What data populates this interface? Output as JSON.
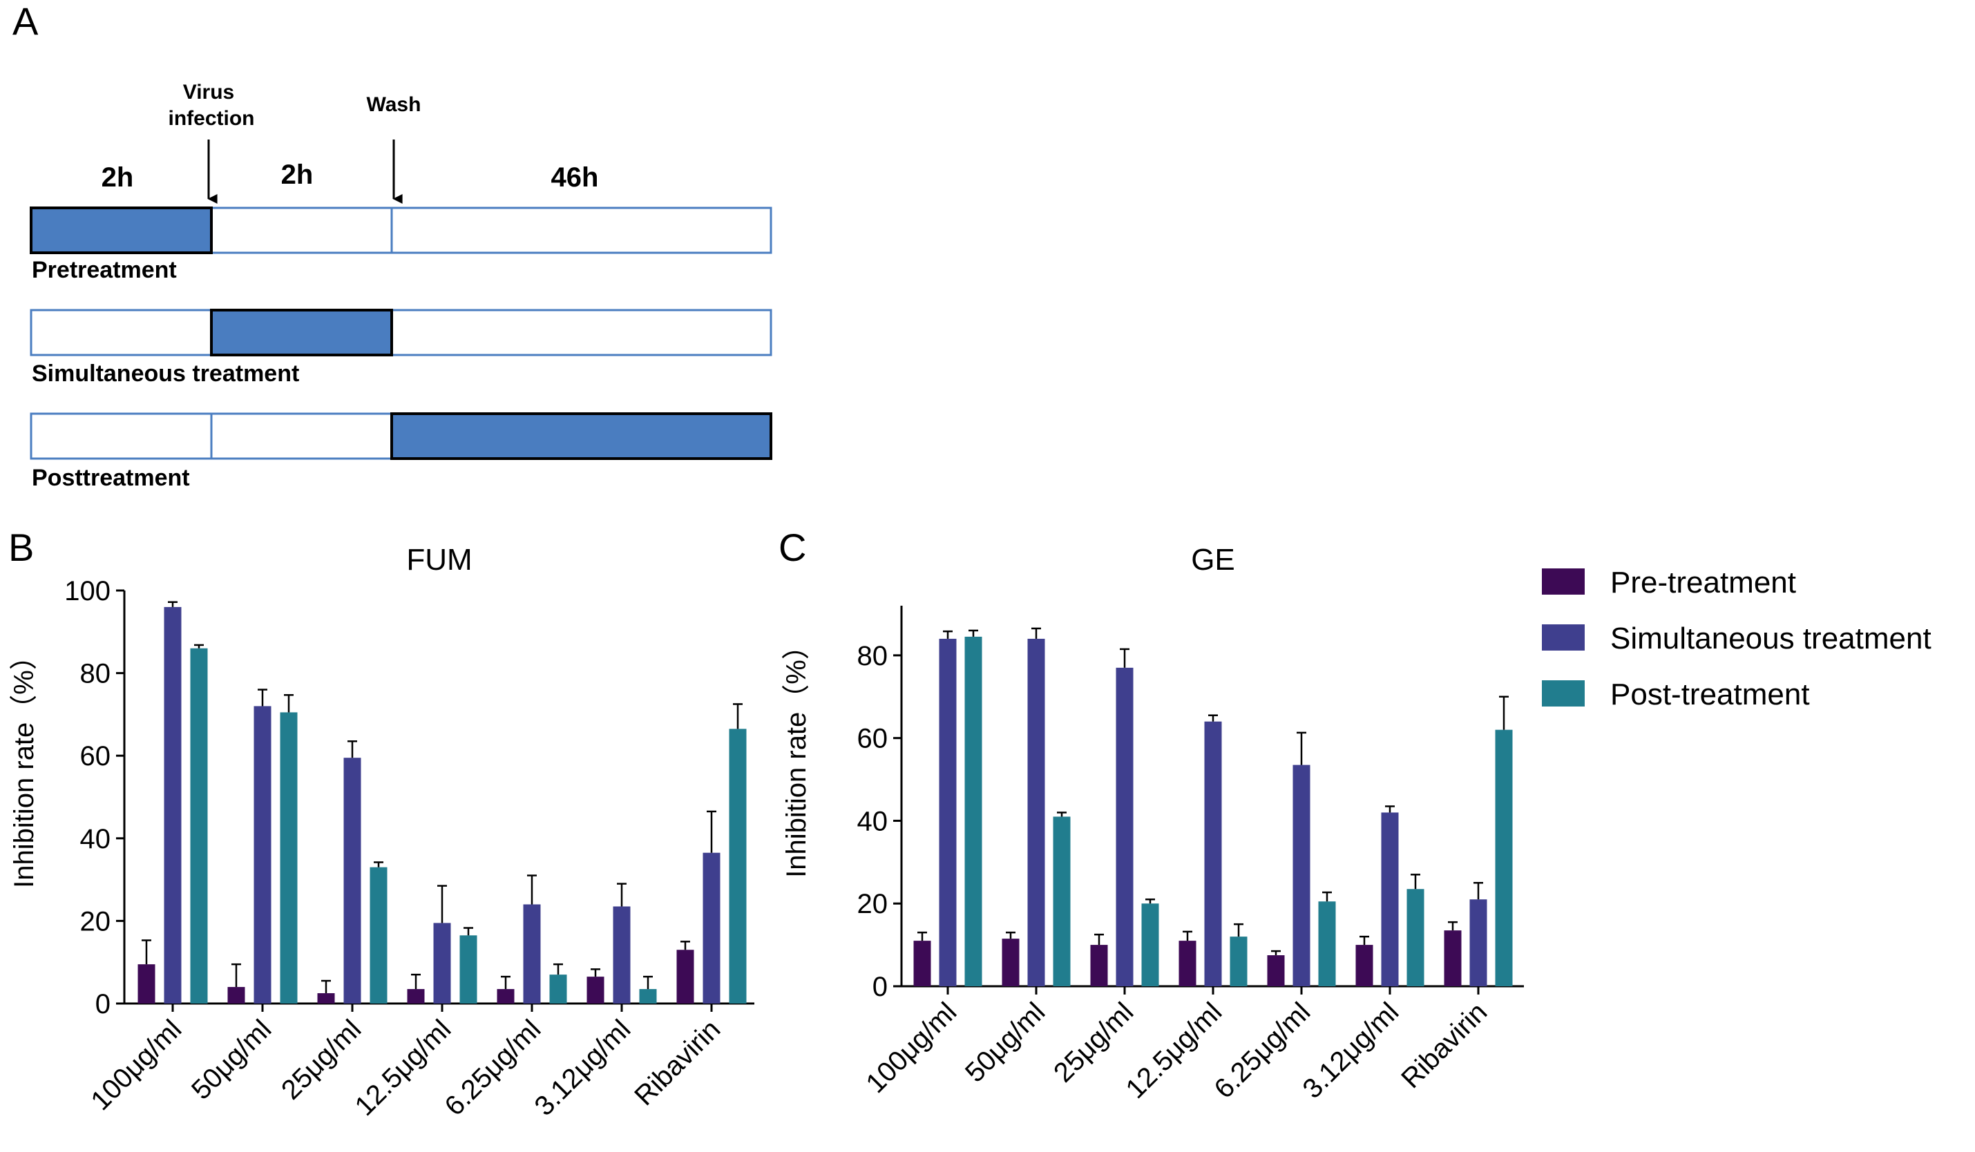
{
  "panel_a": {
    "letter": "A",
    "virus_label_line1": "Virus",
    "virus_label_line2": "infection",
    "wash_label": "Wash",
    "durations": [
      "2h",
      "2h",
      "46h"
    ],
    "rows": [
      {
        "label": "Pretreatment",
        "filled_segment": 0
      },
      {
        "label": "Simultaneous treatment",
        "filled_segment": 1
      },
      {
        "label": "Posttreatment",
        "filled_segment": 2
      }
    ],
    "colors": {
      "fill": "#4A7DC0",
      "outline": "#4A7DC0",
      "highlight_border": "#000000"
    }
  },
  "legend": {
    "items": [
      {
        "label": "Pre-treatment",
        "color": "#3D0A55"
      },
      {
        "label": "Simultaneous treatment",
        "color": "#3F3F8E"
      },
      {
        "label": "Post-treatment",
        "color": "#217D8E"
      }
    ]
  },
  "chart_data": [
    {
      "type": "bar",
      "panel": "B",
      "title": "FUM",
      "ylabel": "Inhibition rate（%）",
      "xlabel": "",
      "ylim": [
        0,
        100
      ],
      "yticks": [
        0,
        20,
        40,
        60,
        80,
        100
      ],
      "categories": [
        "100μg/ml",
        "50μg/ml",
        "25μg/ml",
        "12.5μg/ml",
        "6.25μg/ml",
        "3.12μg/ml",
        "Ribavirin"
      ],
      "series": [
        {
          "name": "Pre-treatment",
          "color": "#3D0A55",
          "values": [
            9.5,
            4,
            2.5,
            3.5,
            3.5,
            6.5,
            13
          ],
          "errors": [
            5.8,
            5.5,
            3,
            3.5,
            3,
            1.8,
            2
          ]
        },
        {
          "name": "Simultaneous treatment",
          "color": "#3F3F8E",
          "values": [
            96,
            72,
            59.5,
            19.5,
            24,
            23.5,
            36.5
          ],
          "errors": [
            1.2,
            4,
            4,
            9,
            7,
            5.5,
            10
          ]
        },
        {
          "name": "Post-treatment",
          "color": "#217D8E",
          "values": [
            86,
            70.5,
            33,
            16.5,
            7,
            3.5,
            66.5
          ],
          "errors": [
            0.8,
            4.2,
            1.2,
            1.8,
            2.5,
            3,
            6
          ]
        }
      ]
    },
    {
      "type": "bar",
      "panel": "C",
      "title": "GE",
      "ylabel": "Inhibition rate（%）",
      "xlabel": "",
      "ylim": [
        0,
        92
      ],
      "yticks": [
        0,
        20,
        40,
        60,
        80
      ],
      "categories": [
        "100μg/ml",
        "50μg/ml",
        "25μg/ml",
        "12.5μg/ml",
        "6.25μg/ml",
        "3.12μg/ml",
        "Ribavirin"
      ],
      "series": [
        {
          "name": "Pre-treatment",
          "color": "#3D0A55",
          "values": [
            11,
            11.5,
            10,
            11,
            7.5,
            10,
            13.5
          ],
          "errors": [
            2,
            1.5,
            2.5,
            2.2,
            1,
            2,
            2
          ]
        },
        {
          "name": "Simultaneous treatment",
          "color": "#3F3F8E",
          "values": [
            84,
            84,
            77,
            64,
            53.5,
            42,
            21
          ],
          "errors": [
            1.8,
            2.5,
            4.5,
            1.5,
            7.8,
            1.5,
            4
          ]
        },
        {
          "name": "Post-treatment",
          "color": "#217D8E",
          "values": [
            84.5,
            41,
            20,
            12,
            20.5,
            23.5,
            62
          ],
          "errors": [
            1.5,
            1,
            1,
            3,
            2.2,
            3.5,
            8
          ]
        }
      ]
    }
  ]
}
